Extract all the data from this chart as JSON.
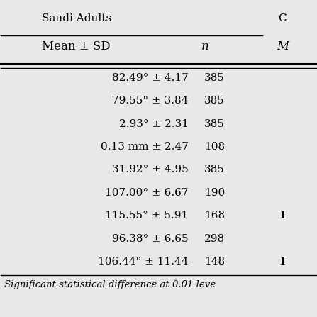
{
  "title_col1": "Saudi Adults",
  "title_col2": "C",
  "header1": "Mean ± SD",
  "header2": "n",
  "header3": "M",
  "rows": [
    [
      "82.49° ± 4.17",
      "385",
      ""
    ],
    [
      "79.55° ± 3.84",
      "385",
      ""
    ],
    [
      "2.93° ± 2.31",
      "385",
      ""
    ],
    [
      "0.13 mm ± 2.47",
      "108",
      ""
    ],
    [
      "31.92° ± 4.95",
      "385",
      ""
    ],
    [
      "107.00° ± 6.67",
      "190",
      ""
    ],
    [
      "115.55° ± 5.91",
      "168",
      "I"
    ],
    [
      "96.38° ± 6.65",
      "298",
      ""
    ],
    [
      "106.44° ± 11.44",
      "148",
      "I"
    ]
  ],
  "footnote": "Significant statistical difference at 0.01 leve",
  "bg_color": "#e8e8e8",
  "text_color": "#000000",
  "line_color": "#000000",
  "font_size": 11,
  "header_font_size": 12,
  "footnote_font_size": 9.5
}
